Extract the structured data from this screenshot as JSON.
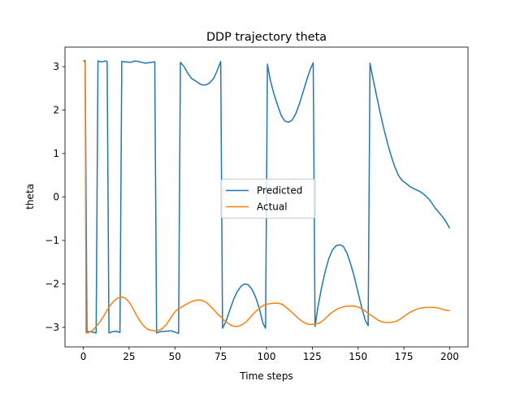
{
  "chart_data": {
    "type": "line",
    "title": "DDP trajectory theta",
    "xlabel": "Time steps",
    "ylabel": "theta",
    "xlim": [
      -10,
      210
    ],
    "ylim": [
      -3.45,
      3.45
    ],
    "xticks": [
      0,
      25,
      50,
      75,
      100,
      125,
      150,
      175,
      200
    ],
    "yticks": [
      -3,
      -2,
      -1,
      0,
      1,
      2,
      3
    ],
    "grid": false,
    "legend_position": "center",
    "series": [
      {
        "name": "Predicted",
        "color": "#1f77b4",
        "points": [
          [
            0,
            3.14
          ],
          [
            0.5,
            3.14
          ],
          [
            1,
            3.14
          ],
          [
            2,
            -3.1
          ],
          [
            4,
            -3.1
          ],
          [
            6,
            -3.12
          ],
          [
            7,
            -3.13
          ],
          [
            8,
            3.13
          ],
          [
            9,
            3.12
          ],
          [
            10,
            3.11
          ],
          [
            11,
            3.12
          ],
          [
            12,
            3.13
          ],
          [
            13,
            3.12
          ],
          [
            14,
            -3.13
          ],
          [
            16,
            -3.1
          ],
          [
            18,
            -3.09
          ],
          [
            20,
            -3.12
          ],
          [
            21,
            3.12
          ],
          [
            23,
            3.11
          ],
          [
            26,
            3.1
          ],
          [
            28,
            3.13
          ],
          [
            30,
            3.12
          ],
          [
            32,
            3.1
          ],
          [
            34,
            3.08
          ],
          [
            37,
            3.1
          ],
          [
            39,
            3.11
          ],
          [
            40,
            -3.13
          ],
          [
            42,
            -3.1
          ],
          [
            45,
            -3.09
          ],
          [
            48,
            -3.08
          ],
          [
            50,
            -3.11
          ],
          [
            52,
            -3.14
          ],
          [
            53,
            3.1
          ],
          [
            55,
            3.0
          ],
          [
            57,
            2.85
          ],
          [
            59,
            2.73
          ],
          [
            61,
            2.68
          ],
          [
            63,
            2.62
          ],
          [
            65,
            2.58
          ],
          [
            67,
            2.58
          ],
          [
            69,
            2.63
          ],
          [
            71,
            2.72
          ],
          [
            73,
            2.9
          ],
          [
            75,
            3.12
          ],
          [
            76,
            -3.02
          ],
          [
            78,
            -2.85
          ],
          [
            80,
            -2.6
          ],
          [
            82,
            -2.36
          ],
          [
            84,
            -2.18
          ],
          [
            86,
            -2.06
          ],
          [
            88,
            -2.0
          ],
          [
            90,
            -2.02
          ],
          [
            92,
            -2.12
          ],
          [
            94,
            -2.3
          ],
          [
            96,
            -2.55
          ],
          [
            98,
            -2.9
          ],
          [
            99.5,
            -3.02
          ],
          [
            100.5,
            3.06
          ],
          [
            102,
            2.7
          ],
          [
            104,
            2.38
          ],
          [
            106,
            2.12
          ],
          [
            108,
            1.88
          ],
          [
            110,
            1.75
          ],
          [
            112,
            1.72
          ],
          [
            114,
            1.77
          ],
          [
            116,
            1.92
          ],
          [
            118,
            2.15
          ],
          [
            120,
            2.42
          ],
          [
            122,
            2.7
          ],
          [
            124,
            2.95
          ],
          [
            125.5,
            3.09
          ],
          [
            126.5,
            -2.98
          ],
          [
            128,
            -2.55
          ],
          [
            130,
            -2.1
          ],
          [
            132,
            -1.72
          ],
          [
            134,
            -1.42
          ],
          [
            136,
            -1.22
          ],
          [
            138,
            -1.12
          ],
          [
            140,
            -1.1
          ],
          [
            142,
            -1.14
          ],
          [
            144,
            -1.3
          ],
          [
            146,
            -1.55
          ],
          [
            148,
            -1.85
          ],
          [
            150,
            -2.2
          ],
          [
            152,
            -2.55
          ],
          [
            154,
            -2.85
          ],
          [
            155.5,
            -2.96
          ],
          [
            156.5,
            3.08
          ],
          [
            158,
            2.75
          ],
          [
            160,
            2.35
          ],
          [
            162,
            1.95
          ],
          [
            164,
            1.58
          ],
          [
            166,
            1.25
          ],
          [
            168,
            0.95
          ],
          [
            170,
            0.7
          ],
          [
            172,
            0.5
          ],
          [
            174,
            0.38
          ],
          [
            176,
            0.32
          ],
          [
            178,
            0.25
          ],
          [
            180,
            0.2
          ],
          [
            182,
            0.16
          ],
          [
            184,
            0.12
          ],
          [
            186,
            0.06
          ],
          [
            188,
            -0.02
          ],
          [
            190,
            -0.12
          ],
          [
            192,
            -0.25
          ],
          [
            194,
            -0.35
          ],
          [
            196,
            -0.45
          ],
          [
            198,
            -0.57
          ],
          [
            200,
            -0.72
          ]
        ]
      },
      {
        "name": "Actual",
        "color": "#ff7f0e",
        "points": [
          [
            0,
            3.14
          ],
          [
            1,
            3.1
          ],
          [
            1.5,
            -3.13
          ],
          [
            3,
            -3.12
          ],
          [
            5,
            -3.07
          ],
          [
            7,
            -2.98
          ],
          [
            9,
            -2.88
          ],
          [
            11,
            -2.75
          ],
          [
            13,
            -2.6
          ],
          [
            15,
            -2.48
          ],
          [
            17,
            -2.38
          ],
          [
            19,
            -2.32
          ],
          [
            21,
            -2.3
          ],
          [
            23,
            -2.33
          ],
          [
            25,
            -2.42
          ],
          [
            27,
            -2.56
          ],
          [
            29,
            -2.72
          ],
          [
            31,
            -2.86
          ],
          [
            33,
            -2.97
          ],
          [
            35,
            -3.04
          ],
          [
            37,
            -3.07
          ],
          [
            39,
            -3.08
          ],
          [
            41,
            -3.07
          ],
          [
            43,
            -3.03
          ],
          [
            45,
            -2.95
          ],
          [
            47,
            -2.83
          ],
          [
            49,
            -2.7
          ],
          [
            51,
            -2.6
          ],
          [
            53,
            -2.55
          ],
          [
            55,
            -2.5
          ],
          [
            57,
            -2.45
          ],
          [
            59,
            -2.41
          ],
          [
            61,
            -2.38
          ],
          [
            63,
            -2.37
          ],
          [
            65,
            -2.38
          ],
          [
            67,
            -2.42
          ],
          [
            69,
            -2.5
          ],
          [
            71,
            -2.58
          ],
          [
            73,
            -2.68
          ],
          [
            75,
            -2.76
          ],
          [
            77,
            -2.84
          ],
          [
            79,
            -2.91
          ],
          [
            81,
            -2.96
          ],
          [
            83,
            -2.98
          ],
          [
            85,
            -2.97
          ],
          [
            87,
            -2.93
          ],
          [
            89,
            -2.87
          ],
          [
            91,
            -2.78
          ],
          [
            93,
            -2.68
          ],
          [
            95,
            -2.6
          ],
          [
            97,
            -2.53
          ],
          [
            99,
            -2.48
          ],
          [
            101,
            -2.46
          ],
          [
            103,
            -2.45
          ],
          [
            105,
            -2.44
          ],
          [
            107,
            -2.45
          ],
          [
            109,
            -2.48
          ],
          [
            111,
            -2.55
          ],
          [
            113,
            -2.62
          ],
          [
            115,
            -2.7
          ],
          [
            117,
            -2.78
          ],
          [
            119,
            -2.85
          ],
          [
            121,
            -2.9
          ],
          [
            123,
            -2.93
          ],
          [
            125,
            -2.93
          ],
          [
            127,
            -2.92
          ],
          [
            129,
            -2.9
          ],
          [
            131,
            -2.84
          ],
          [
            133,
            -2.76
          ],
          [
            135,
            -2.68
          ],
          [
            137,
            -2.62
          ],
          [
            139,
            -2.57
          ],
          [
            141,
            -2.54
          ],
          [
            143,
            -2.52
          ],
          [
            145,
            -2.51
          ],
          [
            147,
            -2.51
          ],
          [
            149,
            -2.52
          ],
          [
            151,
            -2.55
          ],
          [
            153,
            -2.6
          ],
          [
            155,
            -2.66
          ],
          [
            157,
            -2.72
          ],
          [
            159,
            -2.78
          ],
          [
            161,
            -2.84
          ],
          [
            163,
            -2.87
          ],
          [
            165,
            -2.89
          ],
          [
            167,
            -2.89
          ],
          [
            169,
            -2.88
          ],
          [
            171,
            -2.86
          ],
          [
            173,
            -2.81
          ],
          [
            175,
            -2.75
          ],
          [
            177,
            -2.69
          ],
          [
            179,
            -2.64
          ],
          [
            181,
            -2.6
          ],
          [
            183,
            -2.57
          ],
          [
            185,
            -2.55
          ],
          [
            187,
            -2.54
          ],
          [
            189,
            -2.54
          ],
          [
            191,
            -2.54
          ],
          [
            193,
            -2.55
          ],
          [
            195,
            -2.57
          ],
          [
            197,
            -2.6
          ],
          [
            199,
            -2.61
          ],
          [
            200,
            -2.62
          ]
        ]
      }
    ]
  }
}
